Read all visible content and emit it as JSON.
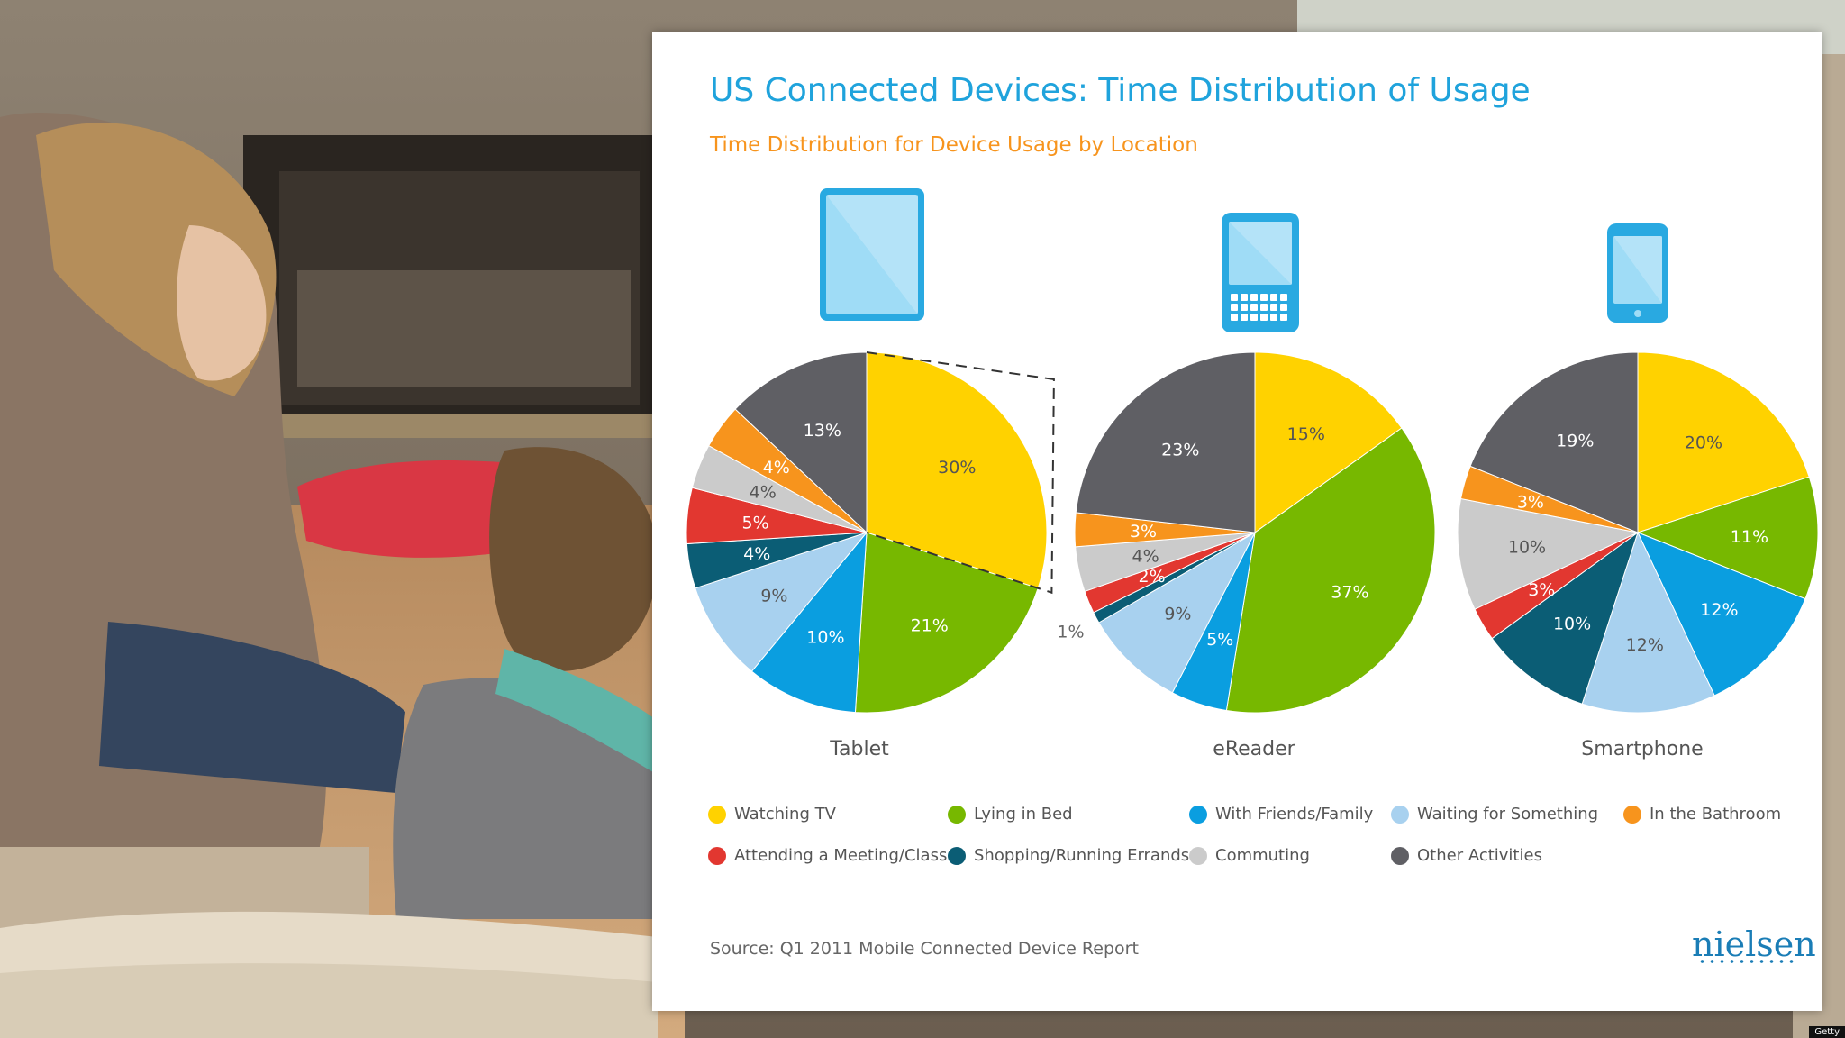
{
  "header": {
    "title": "US Connected Devices: Time Distribution of Usage",
    "subtitle": "Time Distribution for Device Usage by Location"
  },
  "colors": {
    "title": "#1fa3dc",
    "subtitle": "#f7941d",
    "device_icon": "#29a9e1",
    "device_screen": "#9fdcf6"
  },
  "activities": [
    {
      "name": "Watching TV",
      "color": "#ffd200"
    },
    {
      "name": "Lying in Bed",
      "color": "#77b800"
    },
    {
      "name": "With Friends/Family",
      "color": "#0a9ee0"
    },
    {
      "name": "Waiting for Something",
      "color": "#a8d1ef"
    },
    {
      "name": "In the Bathroom",
      "color": "#f7941d"
    },
    {
      "name": "Attending a Meeting/Class",
      "color": "#e23730"
    },
    {
      "name": "Shopping/Running Errands",
      "color": "#0b5d75"
    },
    {
      "name": "Commuting",
      "color": "#cbcbcb"
    },
    {
      "name": "Other Activities",
      "color": "#5f5f64"
    }
  ],
  "chart_data": {
    "type": "pie",
    "title": "US Connected Devices: Time Distribution of Usage",
    "subtitle": "Time Distribution for Device Usage by Location",
    "categories": [
      "Watching TV",
      "Lying in Bed",
      "With Friends/Family",
      "Waiting for Something",
      "Shopping/Running Errands",
      "Attending a Meeting/Class",
      "Commuting",
      "In the Bathroom",
      "Other Activities"
    ],
    "series": [
      {
        "name": "Tablet",
        "icon": "tablet-icon",
        "values": [
          30,
          21,
          10,
          9,
          4,
          5,
          4,
          4,
          13
        ],
        "labels": [
          "30%",
          "21%",
          "10%",
          "9%",
          "4%",
          "5%",
          "4%",
          "4%",
          "13%"
        ]
      },
      {
        "name": "eReader",
        "icon": "ereader-icon",
        "values": [
          15,
          37,
          5,
          9,
          1,
          2,
          4,
          3,
          23
        ],
        "labels": [
          "15%",
          "37%",
          "5%",
          "9%",
          "1%",
          "2%",
          "4%",
          "3%",
          "23%"
        ]
      },
      {
        "name": "Smartphone",
        "icon": "smartphone-icon",
        "values": [
          20,
          11,
          12,
          12,
          10,
          3,
          10,
          3,
          19
        ],
        "labels": [
          "20%",
          "11%",
          "12%",
          "12%",
          "10%",
          "3%",
          "10%",
          "3%",
          "19%"
        ]
      }
    ],
    "legend": "bottom",
    "start": "top, clockwise",
    "highlight": {
      "chart": "Tablet",
      "category": "Watching TV",
      "style": "dashed outline"
    }
  },
  "footer": {
    "source": "Source: Q1 2011 Mobile Connected Device Report",
    "brand": "nielsen"
  },
  "photo_credit": "Getty"
}
